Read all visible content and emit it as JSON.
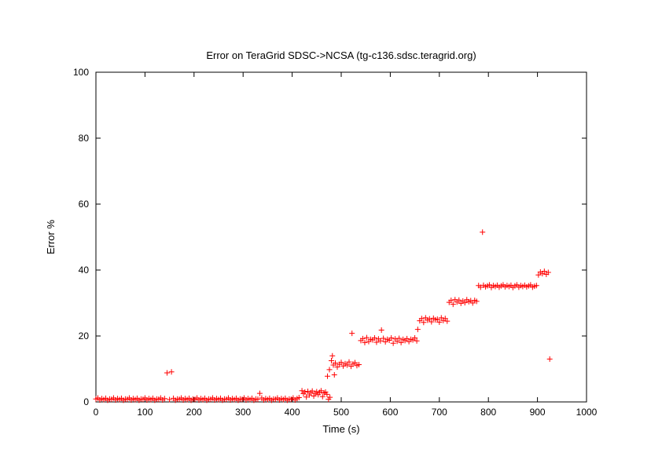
{
  "chart_data": {
    "type": "scatter",
    "title": "Error on TeraGrid SDSC->NCSA (tg-c136.sdsc.teragrid.org)",
    "xlabel": "Time (s)",
    "ylabel": "Error %",
    "xlim": [
      0,
      1000
    ],
    "ylim": [
      0,
      100
    ],
    "xticks": [
      0,
      100,
      200,
      300,
      400,
      500,
      600,
      700,
      800,
      900,
      1000
    ],
    "yticks": [
      0,
      20,
      40,
      60,
      80,
      100
    ],
    "grid": false,
    "legend": "none",
    "marker": "+",
    "series": [
      {
        "color": "#ff0000",
        "points": [
          [
            0,
            0.9
          ],
          [
            4,
            1.2
          ],
          [
            8,
            0.6
          ],
          [
            12,
            1.0
          ],
          [
            16,
            0.7
          ],
          [
            20,
            1.1
          ],
          [
            24,
            0.5
          ],
          [
            28,
            0.9
          ],
          [
            32,
            0.8
          ],
          [
            36,
            1.2
          ],
          [
            40,
            0.6
          ],
          [
            44,
            1.0
          ],
          [
            48,
            0.7
          ],
          [
            52,
            1.1
          ],
          [
            56,
            0.5
          ],
          [
            60,
            0.9
          ],
          [
            64,
            0.8
          ],
          [
            68,
            1.2
          ],
          [
            72,
            0.6
          ],
          [
            76,
            1.0
          ],
          [
            80,
            0.7
          ],
          [
            84,
            1.1
          ],
          [
            88,
            0.5
          ],
          [
            92,
            0.9
          ],
          [
            96,
            0.8
          ],
          [
            100,
            1.2
          ],
          [
            104,
            0.6
          ],
          [
            108,
            1.0
          ],
          [
            112,
            0.7
          ],
          [
            116,
            1.1
          ],
          [
            120,
            0.5
          ],
          [
            124,
            0.9
          ],
          [
            128,
            0.8
          ],
          [
            132,
            1.2
          ],
          [
            136,
            0.6
          ],
          [
            140,
            1.0
          ],
          [
            145,
            8.8
          ],
          [
            150,
            0.7
          ],
          [
            154,
            9.1
          ],
          [
            158,
            1.1
          ],
          [
            162,
            0.5
          ],
          [
            166,
            0.9
          ],
          [
            170,
            0.8
          ],
          [
            174,
            1.2
          ],
          [
            178,
            0.6
          ],
          [
            182,
            1.0
          ],
          [
            186,
            0.7
          ],
          [
            190,
            1.1
          ],
          [
            194,
            0.5
          ],
          [
            198,
            0.9
          ],
          [
            202,
            0.8
          ],
          [
            206,
            1.2
          ],
          [
            210,
            0.6
          ],
          [
            214,
            1.0
          ],
          [
            218,
            0.7
          ],
          [
            222,
            1.1
          ],
          [
            226,
            0.5
          ],
          [
            230,
            0.9
          ],
          [
            234,
            0.8
          ],
          [
            238,
            1.2
          ],
          [
            242,
            0.6
          ],
          [
            246,
            1.0
          ],
          [
            250,
            0.7
          ],
          [
            254,
            1.1
          ],
          [
            258,
            0.5
          ],
          [
            262,
            0.9
          ],
          [
            266,
            0.8
          ],
          [
            270,
            1.2
          ],
          [
            274,
            0.6
          ],
          [
            278,
            1.0
          ],
          [
            282,
            0.7
          ],
          [
            286,
            1.1
          ],
          [
            290,
            0.5
          ],
          [
            294,
            0.9
          ],
          [
            298,
            0.8
          ],
          [
            302,
            1.2
          ],
          [
            306,
            0.6
          ],
          [
            310,
            1.0
          ],
          [
            314,
            0.7
          ],
          [
            318,
            1.1
          ],
          [
            322,
            0.5
          ],
          [
            326,
            0.9
          ],
          [
            330,
            0.8
          ],
          [
            334,
            2.6
          ],
          [
            338,
            1.2
          ],
          [
            342,
            0.6
          ],
          [
            346,
            1.0
          ],
          [
            350,
            0.7
          ],
          [
            354,
            1.1
          ],
          [
            358,
            0.5
          ],
          [
            362,
            0.9
          ],
          [
            366,
            0.8
          ],
          [
            370,
            1.2
          ],
          [
            374,
            0.6
          ],
          [
            378,
            1.0
          ],
          [
            382,
            0.7
          ],
          [
            386,
            1.1
          ],
          [
            390,
            0.5
          ],
          [
            394,
            0.9
          ],
          [
            398,
            0.8
          ],
          [
            402,
            1.2
          ],
          [
            406,
            0.6
          ],
          [
            410,
            1.0
          ],
          [
            414,
            1.3
          ],
          [
            420,
            3.4
          ],
          [
            423,
            2.5
          ],
          [
            426,
            3.0
          ],
          [
            429,
            1.5
          ],
          [
            432,
            3.2
          ],
          [
            435,
            2.1
          ],
          [
            438,
            2.8
          ],
          [
            441,
            3.3
          ],
          [
            444,
            1.8
          ],
          [
            447,
            2.6
          ],
          [
            450,
            3.1
          ],
          [
            453,
            2.2
          ],
          [
            456,
            2.9
          ],
          [
            459,
            3.4
          ],
          [
            462,
            1.6
          ],
          [
            465,
            2.7
          ],
          [
            468,
            3.0
          ],
          [
            471,
            2.3
          ],
          [
            474,
            0.8
          ],
          [
            477,
            1.4
          ],
          [
            472,
            7.8
          ],
          [
            476,
            9.8
          ],
          [
            480,
            12.5
          ],
          [
            482,
            14.0
          ],
          [
            484,
            11.2
          ],
          [
            486,
            8.2
          ],
          [
            488,
            11.8
          ],
          [
            492,
            10.6
          ],
          [
            496,
            11.4
          ],
          [
            500,
            12.0
          ],
          [
            504,
            10.9
          ],
          [
            508,
            11.6
          ],
          [
            512,
            11.2
          ],
          [
            516,
            12.1
          ],
          [
            520,
            10.8
          ],
          [
            524,
            11.5
          ],
          [
            528,
            11.9
          ],
          [
            532,
            11.0
          ],
          [
            536,
            11.3
          ],
          [
            522,
            20.8
          ],
          [
            540,
            18.6
          ],
          [
            544,
            19.2
          ],
          [
            548,
            18.0
          ],
          [
            552,
            19.5
          ],
          [
            556,
            18.3
          ],
          [
            560,
            19.0
          ],
          [
            564,
            18.8
          ],
          [
            568,
            19.4
          ],
          [
            572,
            18.1
          ],
          [
            576,
            19.1
          ],
          [
            580,
            18.5
          ],
          [
            582,
            21.8
          ],
          [
            586,
            19.3
          ],
          [
            590,
            18.2
          ],
          [
            594,
            19.0
          ],
          [
            598,
            18.7
          ],
          [
            602,
            19.4
          ],
          [
            606,
            17.8
          ],
          [
            610,
            19.1
          ],
          [
            614,
            18.4
          ],
          [
            618,
            19.3
          ],
          [
            622,
            18.0
          ],
          [
            626,
            19.0
          ],
          [
            630,
            18.6
          ],
          [
            634,
            19.2
          ],
          [
            638,
            18.3
          ],
          [
            642,
            19.0
          ],
          [
            646,
            18.8
          ],
          [
            650,
            19.4
          ],
          [
            654,
            18.5
          ],
          [
            656,
            22.0
          ],
          [
            660,
            24.6
          ],
          [
            664,
            25.3
          ],
          [
            668,
            24.1
          ],
          [
            672,
            25.5
          ],
          [
            676,
            24.8
          ],
          [
            680,
            25.2
          ],
          [
            684,
            24.3
          ],
          [
            688,
            25.4
          ],
          [
            692,
            24.9
          ],
          [
            696,
            25.1
          ],
          [
            700,
            24.2
          ],
          [
            704,
            25.5
          ],
          [
            708,
            24.7
          ],
          [
            712,
            25.3
          ],
          [
            716,
            24.5
          ],
          [
            720,
            30.2
          ],
          [
            724,
            30.8
          ],
          [
            728,
            29.6
          ],
          [
            732,
            31.0
          ],
          [
            736,
            30.3
          ],
          [
            740,
            30.9
          ],
          [
            744,
            29.9
          ],
          [
            748,
            30.6
          ],
          [
            752,
            30.1
          ],
          [
            756,
            31.0
          ],
          [
            760,
            30.4
          ],
          [
            764,
            30.7
          ],
          [
            768,
            30.0
          ],
          [
            772,
            30.8
          ],
          [
            776,
            30.5
          ],
          [
            780,
            35.3
          ],
          [
            784,
            34.8
          ],
          [
            788,
            51.5
          ],
          [
            790,
            35.4
          ],
          [
            794,
            34.9
          ],
          [
            798,
            35.2
          ],
          [
            802,
            35.5
          ],
          [
            806,
            34.7
          ],
          [
            810,
            35.3
          ],
          [
            814,
            35.0
          ],
          [
            818,
            35.4
          ],
          [
            822,
            34.8
          ],
          [
            826,
            35.2
          ],
          [
            830,
            35.5
          ],
          [
            834,
            34.9
          ],
          [
            838,
            35.3
          ],
          [
            842,
            35.0
          ],
          [
            846,
            35.4
          ],
          [
            850,
            34.7
          ],
          [
            854,
            35.2
          ],
          [
            858,
            35.5
          ],
          [
            862,
            34.8
          ],
          [
            866,
            35.3
          ],
          [
            870,
            35.0
          ],
          [
            874,
            35.4
          ],
          [
            878,
            34.9
          ],
          [
            882,
            35.2
          ],
          [
            886,
            35.5
          ],
          [
            890,
            34.8
          ],
          [
            894,
            35.1
          ],
          [
            898,
            35.3
          ],
          [
            902,
            38.5
          ],
          [
            906,
            39.4
          ],
          [
            910,
            38.9
          ],
          [
            914,
            39.6
          ],
          [
            918,
            38.7
          ],
          [
            922,
            39.3
          ],
          [
            925,
            13.0
          ]
        ]
      }
    ]
  }
}
